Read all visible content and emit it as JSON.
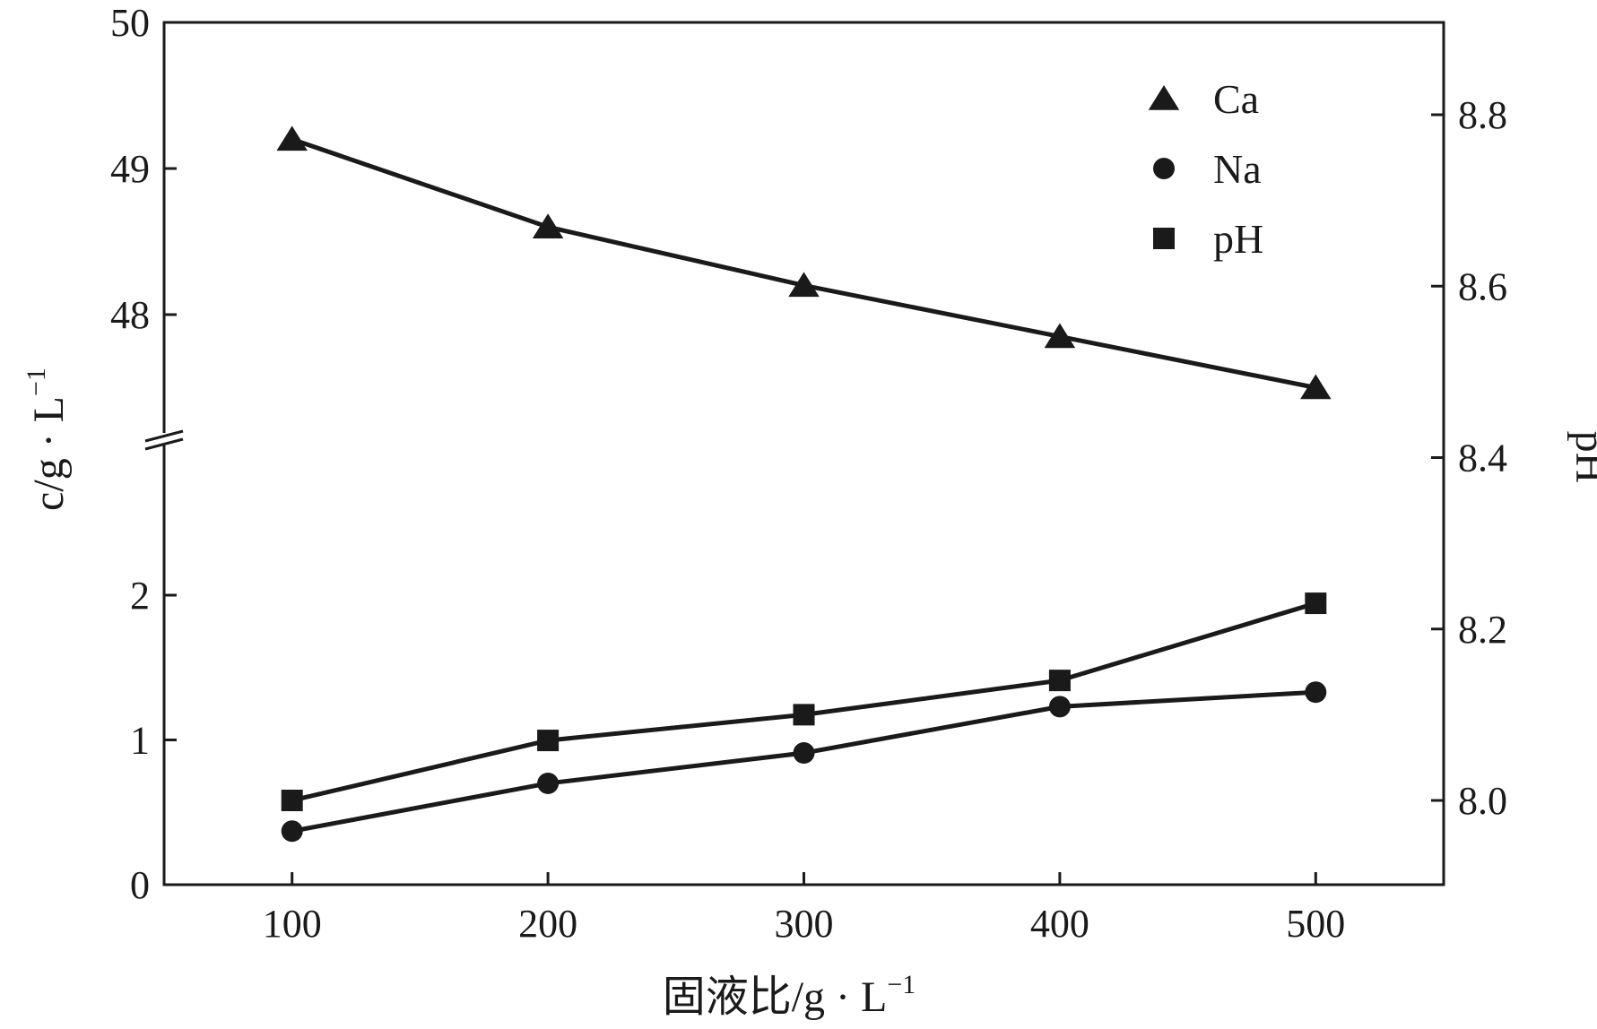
{
  "chart_data": {
    "type": "line",
    "x": [
      100,
      200,
      300,
      400,
      500
    ],
    "xticks": [
      "100",
      "200",
      "300",
      "400",
      "500"
    ],
    "xlabel": "固液比/g · L",
    "xlabel_sup": "−1",
    "ylabel": "c/g · L",
    "ylabel_sup": "−1",
    "y2label": "pH",
    "xlim": [
      50,
      550
    ],
    "ylim_upper": [
      47,
      50
    ],
    "ylim_lower": [
      0,
      3
    ],
    "y_axis_break": true,
    "y2lim": [
      7.9,
      8.9
    ],
    "yticks_upper": [
      "48",
      "49",
      "50"
    ],
    "yticks_lower": [
      "0",
      "1",
      "2"
    ],
    "y2ticks": [
      "8.0",
      "8.2",
      "8.4",
      "8.6",
      "8.8"
    ],
    "legend_position": "top-right",
    "series": [
      {
        "name": "Ca",
        "marker": "triangle",
        "axis": "left",
        "values": [
          49.2,
          48.6,
          48.2,
          47.85,
          47.5
        ]
      },
      {
        "name": "Na",
        "marker": "circle",
        "axis": "left",
        "values": [
          0.37,
          0.7,
          0.91,
          1.23,
          1.33
        ]
      },
      {
        "name": "pH",
        "marker": "square",
        "axis": "right",
        "values": [
          8.0,
          8.07,
          8.1,
          8.14,
          8.23
        ]
      }
    ],
    "colors": {
      "line": "#1a1a1a",
      "marker": "#1a1a1a",
      "axis": "#1a1a1a",
      "background": "#ffffff"
    }
  }
}
